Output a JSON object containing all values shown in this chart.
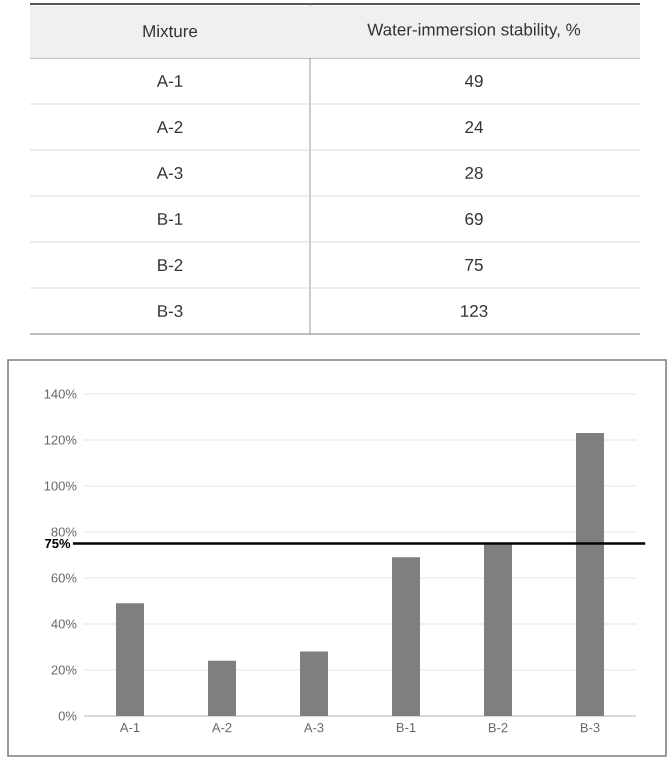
{
  "chart_data": {
    "type": "bar",
    "annotations": [
      "Mixture",
      "Water-immersion stability, %",
      "49",
      "24",
      "28",
      "69",
      "75",
      "123"
    ],
    "categories": [
      "A-1",
      "A-2",
      "A-3",
      "B-1",
      "B-2",
      "B-3"
    ],
    "values": [
      49,
      24,
      28,
      69,
      75,
      123
    ],
    "color": "#7f7f7f",
    "ylim": [
      0,
      140
    ],
    "yticks": [
      {
        "value": 0,
        "label": "0%"
      },
      {
        "value": 20,
        "label": "20%"
      },
      {
        "value": 40,
        "label": "40%"
      },
      {
        "value": 60,
        "label": "60%"
      },
      {
        "value": 80,
        "label": "80%"
      },
      {
        "value": 100,
        "label": "100%"
      },
      {
        "value": 120,
        "label": "120%"
      },
      {
        "value": 140,
        "label": "140%"
      }
    ],
    "ref_lines": [
      {
        "axis": "y",
        "value": 75,
        "label": "75%",
        "color": "#000000"
      }
    ],
    "grid": "y"
  }
}
